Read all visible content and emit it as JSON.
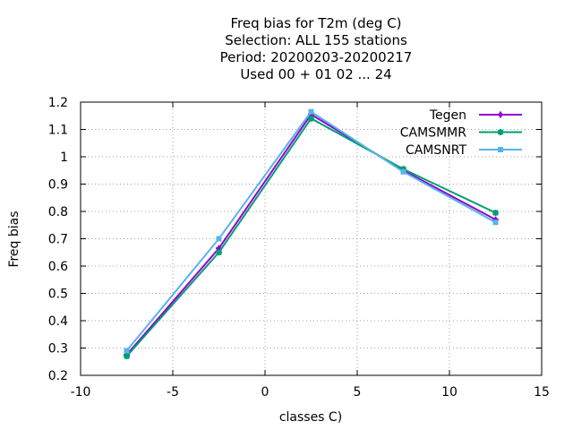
{
  "chart_data": {
    "type": "line",
    "title_lines": [
      "Freq bias  for T2m (deg C)",
      "Selection: ALL    155 stations",
      "Period: 20200203-20200217",
      "Used  00 + 01 02 ... 24"
    ],
    "xlabel": "classes C)",
    "ylabel": "Freq bias",
    "xlim": [
      -10,
      15
    ],
    "ylim": [
      0.2,
      1.2
    ],
    "xticks": [
      -10,
      -5,
      0,
      5,
      10,
      15
    ],
    "yticks": [
      0.2,
      0.3,
      0.4,
      0.5,
      0.6,
      0.7,
      0.8,
      0.9,
      1,
      1.1,
      1.2
    ],
    "grid": true,
    "legend_position": "top-right",
    "x": [
      -7.5,
      -2.5,
      2.5,
      7.5,
      12.5
    ],
    "series": [
      {
        "name": "Tegen",
        "color": "#9400d3",
        "marker": "plus",
        "values": [
          0.275,
          0.665,
          1.155,
          0.95,
          0.77
        ]
      },
      {
        "name": "CAMSMMR",
        "color": "#009e73",
        "marker": "star",
        "values": [
          0.27,
          0.65,
          1.14,
          0.955,
          0.795
        ]
      },
      {
        "name": "CAMSNRT",
        "color": "#56b4e9",
        "marker": "box",
        "values": [
          0.29,
          0.7,
          1.165,
          0.945,
          0.76
        ]
      }
    ]
  }
}
